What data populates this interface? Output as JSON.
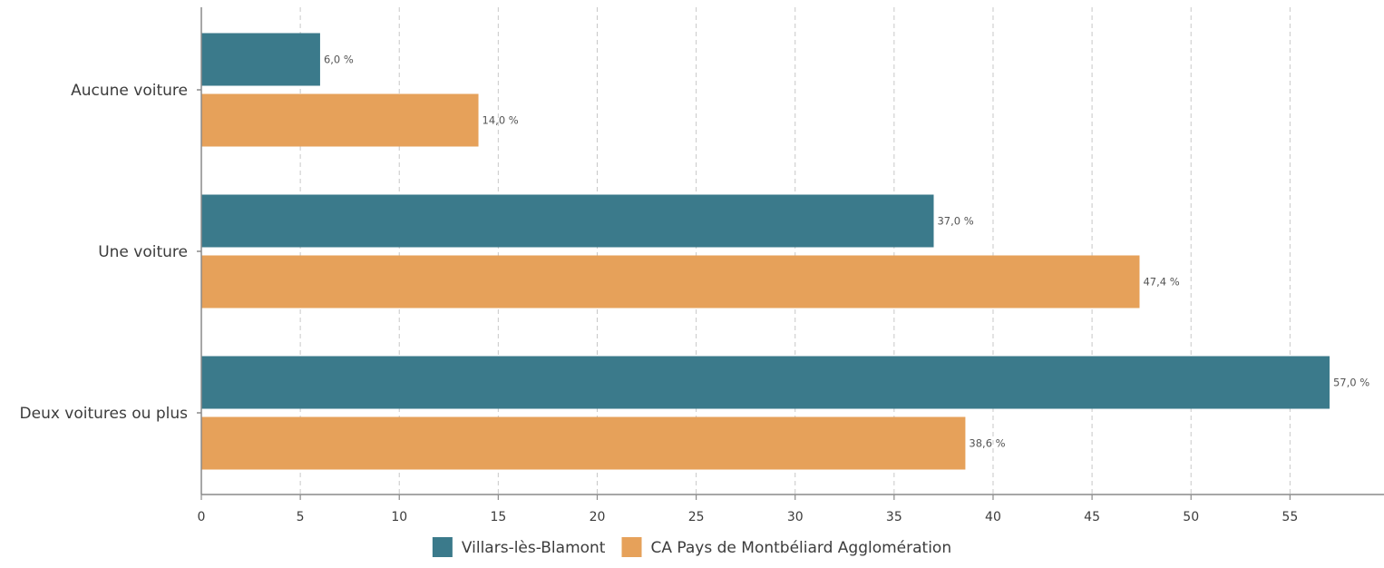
{
  "chart_data": {
    "type": "bar",
    "orientation": "horizontal",
    "title": "",
    "xlabel": "",
    "ylabel": "",
    "categories": [
      "Aucune voiture",
      "Une voiture",
      "Deux voitures ou plus"
    ],
    "series": [
      {
        "name": "Villars-lès-Blamont",
        "color": "#3b7a8b",
        "values": [
          6.0,
          37.0,
          57.0
        ],
        "labels": [
          "6,0 %",
          "37,0 %",
          "57,0 %"
        ]
      },
      {
        "name": "CA Pays de Montbéliard Agglomération",
        "color": "#e6a15a",
        "values": [
          14.0,
          47.4,
          38.6
        ],
        "labels": [
          "14,0 %",
          "47,4 %",
          "38,6 %"
        ]
      }
    ],
    "xlim": [
      0,
      59.75
    ],
    "xticks": [
      0,
      5,
      10,
      15,
      20,
      25,
      30,
      35,
      40,
      45,
      50,
      55
    ],
    "xtick_labels": [
      "0",
      "5",
      "10",
      "15",
      "20",
      "25",
      "30",
      "35",
      "40",
      "45",
      "50",
      "55"
    ],
    "grid": "vertical dashed",
    "legend_position": "bottom-center"
  }
}
